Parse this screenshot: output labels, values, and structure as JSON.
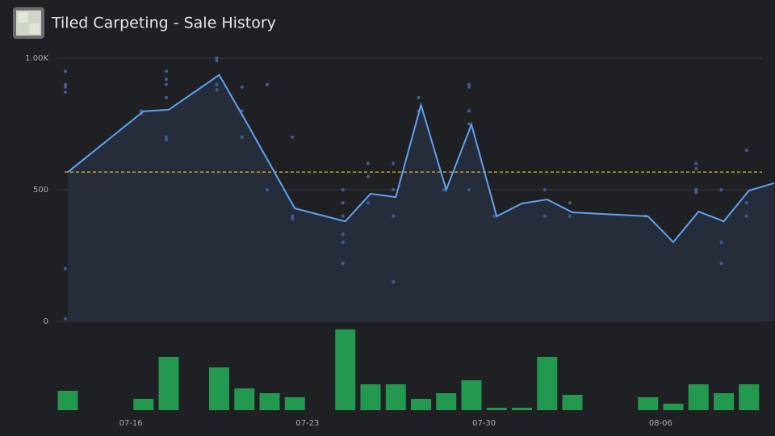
{
  "header": {
    "title": "Tiled Carpeting - Sale History"
  },
  "chart_data": [
    {
      "type": "line",
      "x": [
        "07-13",
        "07-16",
        "07-17",
        "07-19",
        "07-20",
        "07-22",
        "07-24",
        "07-25",
        "07-26",
        "07-27",
        "07-28",
        "07-29",
        "07-30",
        "07-31",
        "08-01",
        "08-02",
        "08-05",
        "08-06",
        "08-07",
        "08-08",
        "08-09",
        "08-10"
      ],
      "series": [
        {
          "color": "#5ea2f2",
          "values": [
            567,
            798,
            804,
            936,
            770,
            429,
            380,
            485,
            472,
            822,
            500,
            748,
            399,
            448,
            463,
            414,
            399,
            301,
            417,
            380,
            497,
            525
          ]
        }
      ],
      "points": {
        "color": "#3f5f94",
        "x": [
          "07-13",
          "07-13",
          "07-13",
          "07-13",
          "07-13",
          "07-13",
          "07-16",
          "07-16",
          "07-17",
          "07-17",
          "07-17",
          "07-17",
          "07-17",
          "07-17",
          "07-19",
          "07-19",
          "07-19",
          "07-19",
          "07-20",
          "07-20",
          "07-20",
          "07-21",
          "07-21",
          "07-22",
          "07-22",
          "07-22",
          "07-24",
          "07-24",
          "07-24",
          "07-24",
          "07-24",
          "07-24",
          "07-25",
          "07-25",
          "07-25",
          "07-26",
          "07-26",
          "07-26",
          "07-26",
          "07-27",
          "07-27",
          "07-28",
          "07-29",
          "07-29",
          "07-29",
          "07-29",
          "07-29",
          "07-30",
          "08-01",
          "08-01",
          "08-02",
          "08-02",
          "08-05",
          "08-07",
          "08-07",
          "08-07",
          "08-07",
          "08-08",
          "08-08",
          "08-08",
          "08-09",
          "08-09",
          "08-09"
        ],
        "values": [
          950,
          900,
          890,
          870,
          200,
          10,
          800,
          790,
          950,
          920,
          900,
          850,
          700,
          690,
          1000,
          990,
          900,
          880,
          890,
          800,
          700,
          900,
          500,
          700,
          400,
          390,
          500,
          450,
          400,
          330,
          300,
          220,
          600,
          550,
          450,
          600,
          500,
          400,
          150,
          850,
          800,
          500,
          900,
          890,
          800,
          750,
          500,
          400,
          500,
          400,
          450,
          400,
          400,
          600,
          580,
          500,
          490,
          500,
          300,
          220,
          650,
          450,
          400
        ]
      },
      "reference_line": {
        "value": 567,
        "color": "#e6b829"
      },
      "ylim": [
        0,
        1000
      ],
      "yticks": [
        0,
        500,
        {
          "value": 1000,
          "label": "1.00K"
        }
      ],
      "grid": true
    },
    {
      "type": "bar",
      "categories": [
        "07-13",
        "07-16",
        "07-17",
        "07-19",
        "07-20",
        "07-21",
        "07-22",
        "07-24",
        "07-25",
        "07-26",
        "07-27",
        "07-28",
        "07-29",
        "07-30",
        "07-31",
        "08-01",
        "08-02",
        "08-05",
        "08-06",
        "08-07",
        "08-08",
        "08-09"
      ],
      "values": [
        24,
        14,
        66,
        53,
        27,
        21,
        16,
        100,
        32,
        32,
        14,
        21,
        37,
        3,
        3,
        66,
        19,
        16,
        8,
        32,
        21,
        32
      ],
      "color": "#23984f",
      "ylim": [
        0,
        100
      ],
      "xticks": [
        "07-16",
        "07-23",
        "07-30",
        "08-06"
      ]
    }
  ]
}
